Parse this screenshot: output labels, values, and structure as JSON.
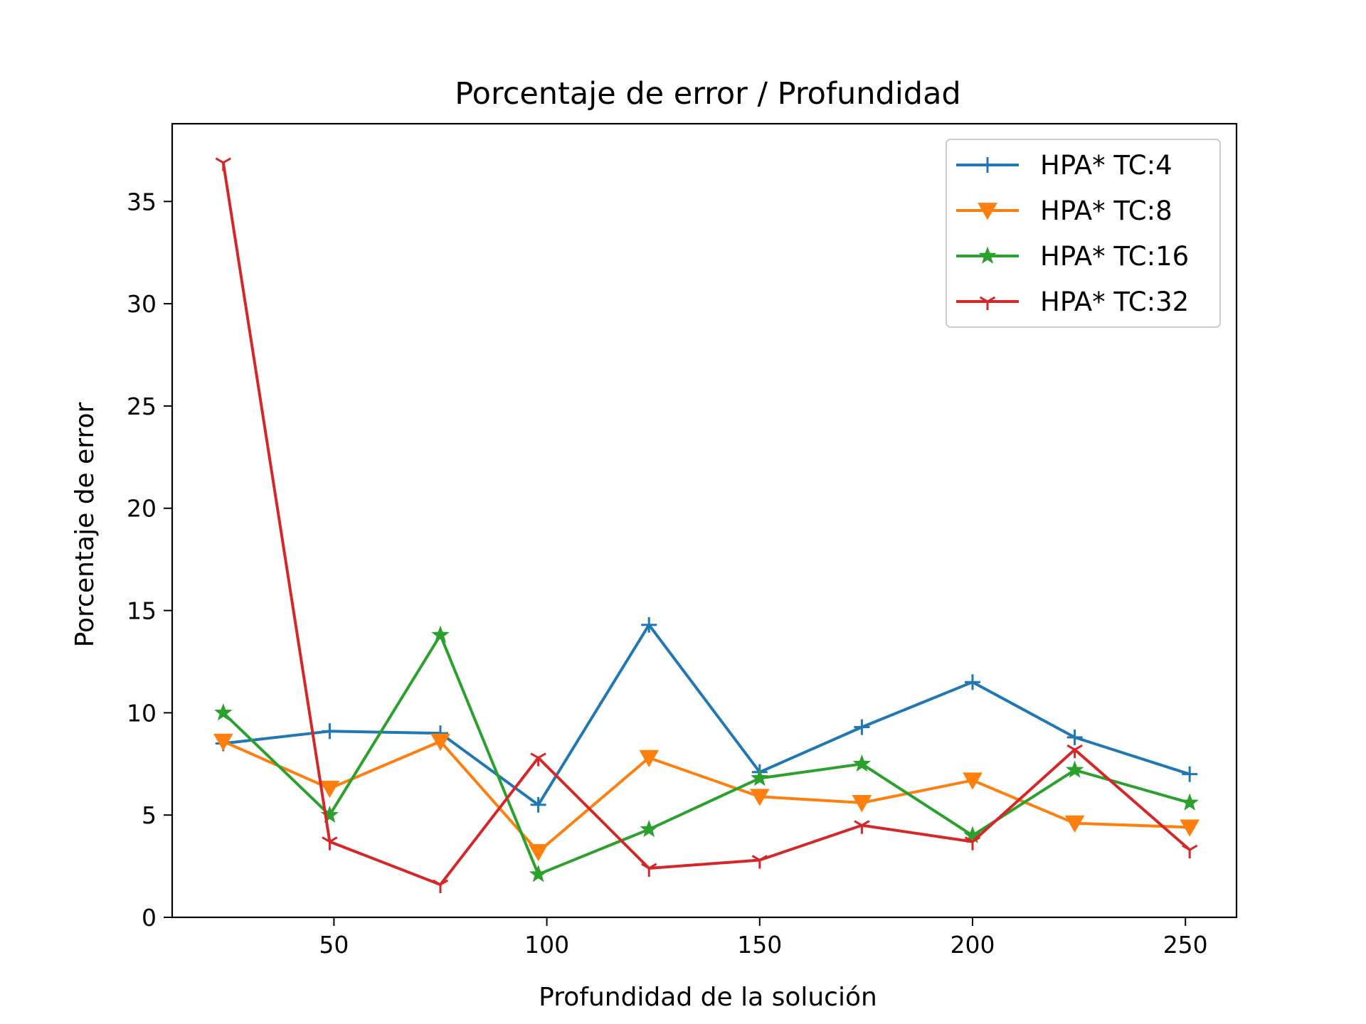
{
  "chart_data": {
    "type": "line",
    "title": "Porcentaje de error / Profundidad",
    "xlabel": "Profundidad de la solución",
    "ylabel": "Porcentaje de error",
    "xlim": [
      12,
      262
    ],
    "ylim": [
      0,
      38.8
    ],
    "x_ticks": [
      50,
      100,
      150,
      200,
      250
    ],
    "y_ticks": [
      0,
      5,
      10,
      15,
      20,
      25,
      30,
      35
    ],
    "grid": false,
    "legend_position": "top-right",
    "x": [
      24,
      49,
      75,
      98,
      124,
      150,
      174,
      200,
      224,
      251
    ],
    "series": [
      {
        "name": "HPA* TC:4",
        "color": "#1f77b4",
        "marker": "plus",
        "values": [
          8.5,
          9.1,
          9.0,
          5.5,
          14.3,
          7.1,
          9.3,
          11.5,
          8.8,
          7.0
        ]
      },
      {
        "name": "HPA* TC:8",
        "color": "#ff7f0e",
        "marker": "triangle-down",
        "values": [
          8.6,
          6.3,
          8.6,
          3.2,
          7.8,
          5.9,
          5.6,
          6.7,
          4.6,
          4.4
        ]
      },
      {
        "name": "HPA* TC:16",
        "color": "#2ca02c",
        "marker": "star",
        "values": [
          10.0,
          5.0,
          13.8,
          2.1,
          4.3,
          6.8,
          7.5,
          4.0,
          7.2,
          5.6
        ]
      },
      {
        "name": "HPA* TC:32",
        "color": "#d62728",
        "marker": "tri-down",
        "values": [
          36.9,
          3.7,
          1.6,
          7.8,
          2.4,
          2.8,
          4.5,
          3.7,
          8.2,
          3.3
        ]
      }
    ]
  }
}
